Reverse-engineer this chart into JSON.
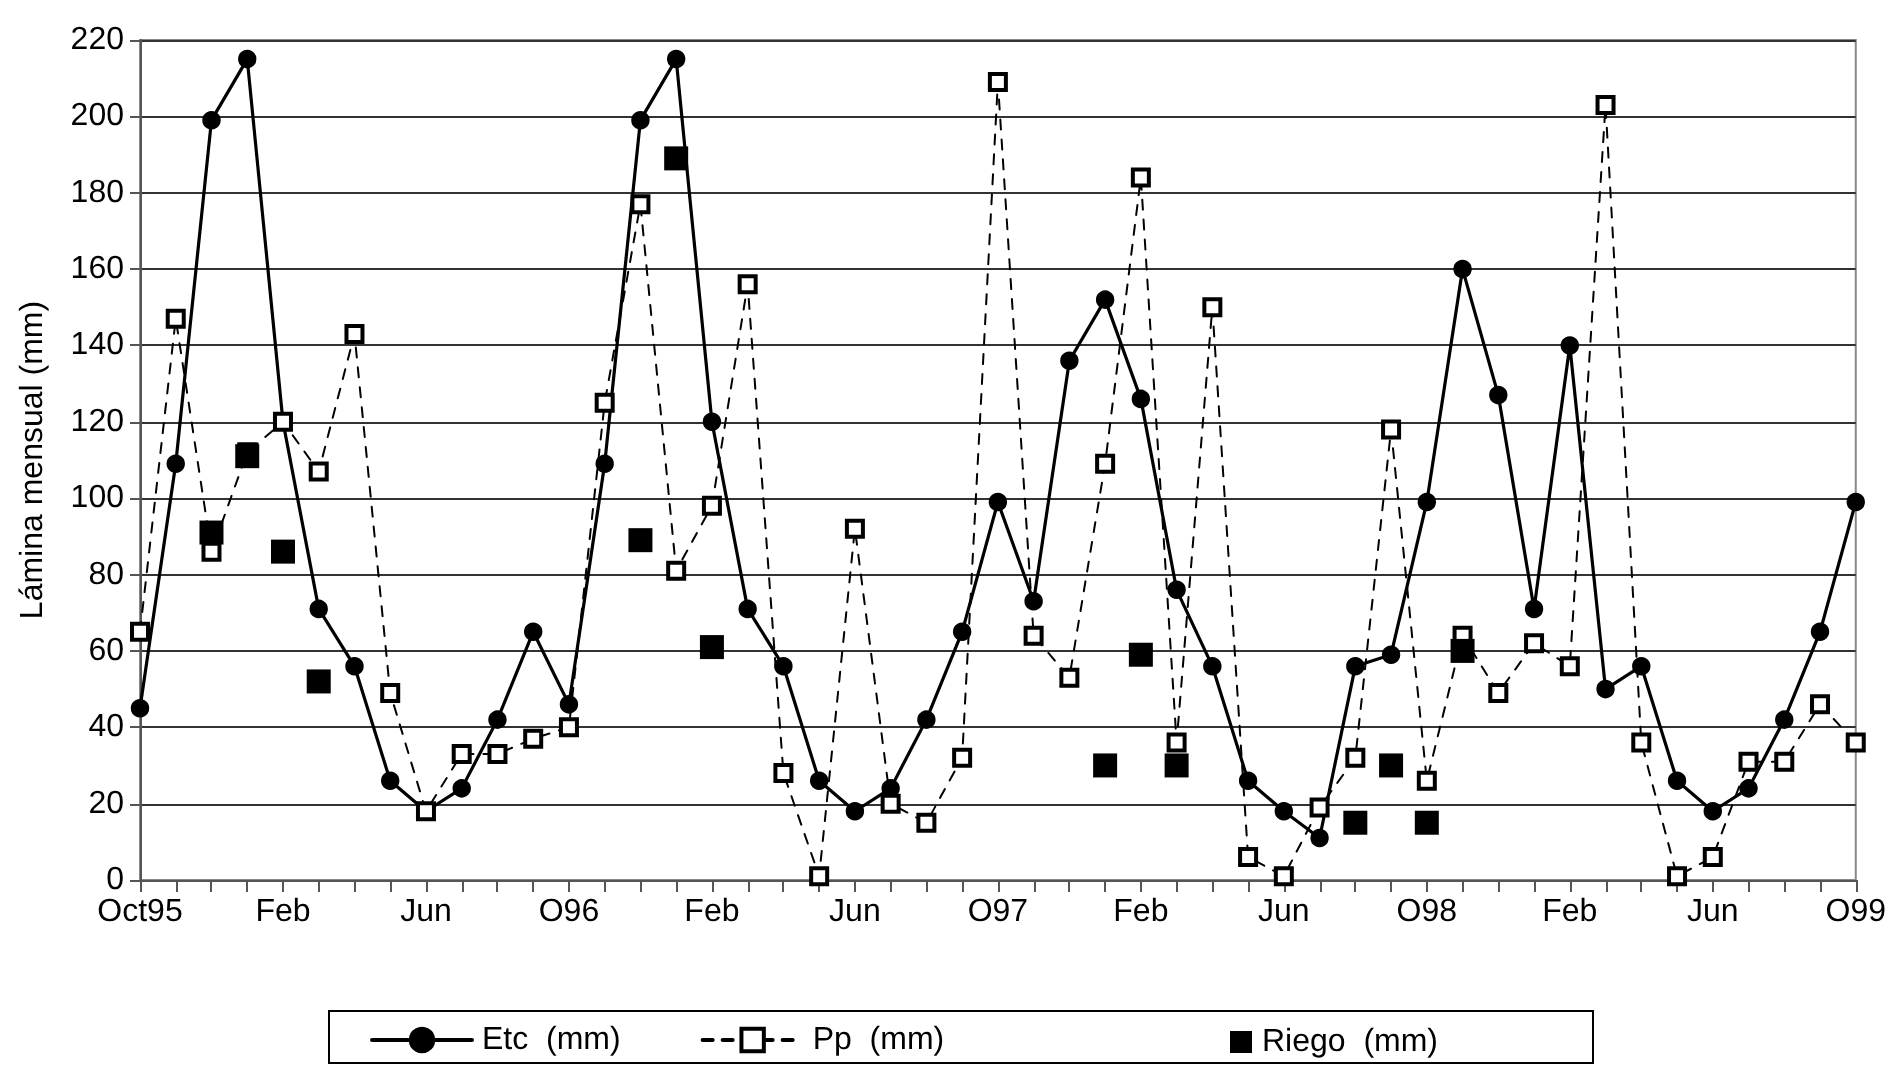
{
  "chart_data": {
    "type": "line",
    "ylabel": "Lámina mensual (mm)",
    "categories": [
      "Oct95",
      null,
      null,
      null,
      "Feb",
      null,
      null,
      null,
      "Jun",
      null,
      null,
      null,
      "O96",
      null,
      null,
      null,
      "Feb",
      null,
      null,
      null,
      "Jun",
      null,
      null,
      null,
      "O97",
      null,
      null,
      null,
      "Feb",
      null,
      null,
      null,
      "Jun",
      null,
      null,
      null,
      "O98",
      null,
      null,
      null,
      "Feb",
      null,
      null,
      null,
      "Jun",
      null,
      null,
      null,
      "O99"
    ],
    "series": [
      {
        "name": "Etc  (mm)",
        "type": "line",
        "color": "#000000",
        "marker": "circle",
        "line_style": "solid",
        "values": [
          45,
          109,
          199,
          215,
          120,
          71,
          56,
          26,
          18,
          24,
          42,
          65,
          46,
          109,
          199,
          215,
          120,
          71,
          56,
          26,
          18,
          24,
          42,
          65,
          99,
          73,
          136,
          152,
          126,
          76,
          56,
          26,
          18,
          11,
          56,
          59,
          99,
          160,
          127,
          71,
          140,
          50,
          56,
          26,
          18,
          24,
          42,
          65,
          99
        ]
      },
      {
        "name": "Pp  (mm)",
        "type": "line",
        "color": "#000000",
        "marker": "square",
        "line_style": "dashed",
        "values": [
          65,
          147,
          86,
          112,
          120,
          107,
          143,
          49,
          18,
          33,
          33,
          37,
          40,
          125,
          177,
          81,
          98,
          156,
          28,
          1,
          92,
          20,
          15,
          32,
          209,
          64,
          53,
          109,
          184,
          36,
          150,
          6,
          1,
          19,
          32,
          118,
          26,
          64,
          49,
          62,
          56,
          203,
          36,
          1,
          6,
          31,
          31,
          46,
          36
        ]
      },
      {
        "name": "Riego  (mm)",
        "type": "scatter",
        "color": "#000000",
        "marker": "square",
        "values": [
          null,
          null,
          91,
          111,
          86,
          52,
          null,
          null,
          null,
          null,
          null,
          null,
          null,
          null,
          89,
          189,
          61,
          null,
          null,
          null,
          null,
          null,
          null,
          null,
          null,
          null,
          null,
          30,
          59,
          30,
          null,
          null,
          null,
          null,
          15,
          30,
          15,
          60,
          null,
          null,
          null,
          null,
          null,
          null,
          null,
          null,
          null,
          null,
          null
        ]
      }
    ],
    "ylim": [
      0,
      220
    ],
    "yticks": [
      0,
      20,
      40,
      60,
      80,
      100,
      120,
      140,
      160,
      180,
      200,
      220
    ],
    "grid": "y",
    "legend": "bottom"
  }
}
